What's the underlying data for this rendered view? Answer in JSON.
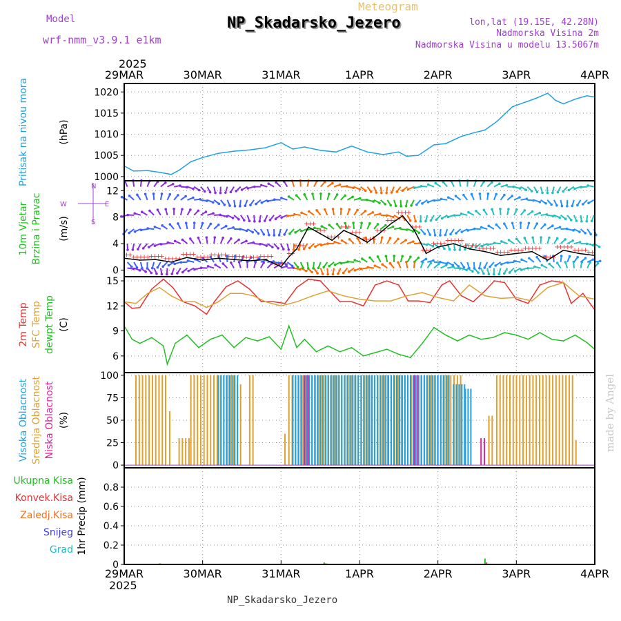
{
  "header": {
    "model_label": "Model",
    "model_name": "wrf-nmm_v3.9.1 e1km",
    "meteogram_label": "Meteogram",
    "station": "NP_Skadarsko_Jezero",
    "lonlat": "lon,lat (19.15E, 42.28N)",
    "elevation": "Nadmorska Visina 2m",
    "model_elevation": "Nadmorska Visina u modelu 13.5067m",
    "watermark": "made by Angel",
    "footer_station": "NP_Skadarsko_Jezero",
    "colors": {
      "purple": "#a040d0",
      "title_shadow": "#9a9a9a",
      "meteogram": "#e8c070"
    }
  },
  "time_axis": {
    "year": "2025",
    "labels": [
      "29MAR",
      "30MAR",
      "31MAR",
      "1APR",
      "2APR",
      "3APR",
      "4APR"
    ],
    "range_days": [
      0,
      6
    ]
  },
  "chart_data": [
    {
      "type": "line",
      "id": "pressure",
      "ylabel_lines": [
        {
          "text": "Pritisak na nivou mora",
          "color": "#20a0e0"
        }
      ],
      "unit": "(hPa)",
      "yticks": [
        "1000",
        "1005",
        "1010",
        "1015",
        "1020"
      ],
      "ylim": [
        999,
        1022
      ],
      "grid": true,
      "series": [
        {
          "color": "#20a0e0",
          "x": [
            0,
            0.12,
            0.3,
            0.45,
            0.6,
            0.7,
            0.85,
            1.0,
            1.2,
            1.4,
            1.6,
            1.8,
            2.0,
            2.15,
            2.3,
            2.5,
            2.7,
            2.9,
            3.1,
            3.3,
            3.5,
            3.6,
            3.75,
            3.95,
            4.1,
            4.3,
            4.45,
            4.6,
            4.75,
            4.95,
            5.1,
            5.25,
            5.4,
            5.5,
            5.6,
            5.75,
            5.9,
            6.0
          ],
          "y": [
            1002.5,
            1001.3,
            1001.4,
            1001.0,
            1000.5,
            1001.5,
            1003.5,
            1004.5,
            1005.5,
            1006.0,
            1006.3,
            1006.8,
            1008.0,
            1006.5,
            1007.0,
            1006.2,
            1005.8,
            1007.2,
            1005.8,
            1005.2,
            1005.8,
            1004.8,
            1005.0,
            1007.5,
            1007.8,
            1009.5,
            1010.3,
            1011.0,
            1013.0,
            1016.5,
            1017.5,
            1018.5,
            1019.7,
            1018.0,
            1017.2,
            1018.3,
            1019.1,
            1018.8
          ]
        }
      ]
    },
    {
      "type": "line",
      "id": "wind",
      "ylabel_lines": [
        {
          "text": "10m Vjetar",
          "color": "#20c020"
        },
        {
          "text": "Brzina i Pravac",
          "color": "#20c020"
        }
      ],
      "unit": "(m/s)",
      "compass": "N S E W",
      "yticks": [
        "0",
        "4",
        "8",
        "12"
      ],
      "ylim": [
        -1,
        13.5
      ],
      "grid": true,
      "series": [
        {
          "color": "#000000",
          "x": [
            0,
            0.2,
            0.4,
            0.6,
            0.8,
            1.0,
            1.2,
            1.4,
            1.6,
            1.8,
            2.0,
            2.1,
            2.2,
            2.35,
            2.5,
            2.65,
            2.8,
            2.95,
            3.1,
            3.25,
            3.4,
            3.55,
            3.7,
            3.85,
            4.0,
            4.2,
            4.4,
            4.6,
            4.8,
            5.0,
            5.2,
            5.4,
            5.6,
            5.8,
            6.0
          ],
          "y": [
            1.8,
            1.5,
            1.6,
            1.2,
            1.9,
            1.5,
            1.8,
            1.6,
            1.4,
            1.6,
            0.5,
            2.0,
            3.2,
            6.5,
            5.5,
            4.5,
            6.0,
            5.2,
            4.2,
            5.5,
            7.0,
            8.2,
            6.0,
            2.5,
            3.5,
            4.0,
            3.2,
            2.8,
            2.2,
            2.5,
            2.8,
            1.5,
            3.0,
            2.5,
            2.2
          ]
        }
      ],
      "arrow_rows": [
        0.3,
        1.2,
        4.0,
        6.2,
        8.3,
        10.6,
        12.6
      ]
    },
    {
      "type": "line",
      "id": "temperature",
      "ylabel_lines": [
        {
          "text": "2m Temp",
          "color": "#e83030"
        },
        {
          "text": "SFC Temp",
          "color": "#e0a030"
        },
        {
          "text": "dewpt Temp",
          "color": "#20c020"
        }
      ],
      "unit": "(C)",
      "yticks": [
        "6",
        "9",
        "12",
        "15"
      ],
      "ylim": [
        4,
        15.5
      ],
      "grid": true,
      "series": [
        {
          "color": "#e83030",
          "x": [
            0,
            0.1,
            0.2,
            0.35,
            0.5,
            0.62,
            0.75,
            0.9,
            1.05,
            1.15,
            1.3,
            1.45,
            1.6,
            1.75,
            1.9,
            2.05,
            2.2,
            2.35,
            2.5,
            2.6,
            2.75,
            2.9,
            3.05,
            3.2,
            3.35,
            3.5,
            3.62,
            3.75,
            3.9,
            4.05,
            4.15,
            4.3,
            4.45,
            4.6,
            4.72,
            4.85,
            5.0,
            5.15,
            5.3,
            5.45,
            5.6,
            5.7,
            5.85,
            6.0
          ],
          "y": [
            12.5,
            11.7,
            11.8,
            14.0,
            15.2,
            14.2,
            12.5,
            12.0,
            11.0,
            12.5,
            14.3,
            15.0,
            14.0,
            12.5,
            12.5,
            12.3,
            14.2,
            15.2,
            15.0,
            14.0,
            12.5,
            12.5,
            12.0,
            14.5,
            15.0,
            14.5,
            12.6,
            12.6,
            12.4,
            14.5,
            15.0,
            13.2,
            12.5,
            13.8,
            15.0,
            14.8,
            12.8,
            12.3,
            14.5,
            15.0,
            14.8,
            12.3,
            13.5,
            11.5
          ]
        },
        {
          "color": "#e0a030",
          "x": [
            0,
            0.15,
            0.3,
            0.45,
            0.6,
            0.75,
            0.9,
            1.05,
            1.2,
            1.35,
            1.5,
            1.65,
            1.8,
            2.0,
            2.2,
            2.4,
            2.6,
            2.8,
            3.0,
            3.2,
            3.4,
            3.6,
            3.8,
            4.0,
            4.2,
            4.4,
            4.6,
            4.8,
            5.0,
            5.2,
            5.4,
            5.6,
            5.8,
            6.0
          ],
          "y": [
            12.5,
            12.3,
            13.5,
            14.2,
            13.2,
            12.5,
            12.5,
            11.8,
            12.5,
            13.5,
            13.5,
            13.2,
            12.5,
            12.0,
            12.5,
            13.2,
            13.8,
            13.2,
            12.8,
            12.6,
            12.6,
            13.2,
            13.6,
            13.0,
            12.6,
            14.5,
            13.2,
            12.9,
            13.0,
            12.6,
            14.2,
            14.8,
            13.2,
            12.8
          ]
        },
        {
          "color": "#20c020",
          "x": [
            0,
            0.1,
            0.2,
            0.35,
            0.5,
            0.55,
            0.65,
            0.8,
            0.95,
            1.1,
            1.25,
            1.4,
            1.55,
            1.7,
            1.85,
            2.0,
            2.1,
            2.2,
            2.3,
            2.45,
            2.6,
            2.75,
            2.9,
            3.05,
            3.2,
            3.35,
            3.5,
            3.65,
            3.8,
            3.95,
            4.1,
            4.25,
            4.4,
            4.55,
            4.7,
            4.85,
            5.0,
            5.15,
            5.3,
            5.45,
            5.6,
            5.75,
            5.9,
            6.0
          ],
          "y": [
            9.6,
            8.0,
            7.5,
            8.2,
            7.2,
            5.0,
            7.5,
            8.5,
            7.0,
            8.0,
            8.5,
            7.0,
            8.2,
            7.8,
            8.3,
            6.8,
            9.6,
            7.0,
            8.0,
            6.5,
            7.2,
            6.5,
            7.0,
            6.0,
            6.4,
            6.8,
            6.2,
            5.8,
            7.5,
            9.4,
            8.5,
            7.8,
            8.5,
            8.0,
            8.2,
            8.8,
            8.5,
            8.0,
            8.8,
            8.0,
            7.8,
            8.5,
            7.6,
            6.8
          ]
        }
      ]
    },
    {
      "type": "bar",
      "id": "clouds",
      "ylabel_lines": [
        {
          "text": "Visoka Oblacnost",
          "color": "#20a0e0"
        },
        {
          "text": "Srednja Oblacnost",
          "color": "#e0a030"
        },
        {
          "text": "Niska Oblacnost",
          "color": "#e020a0"
        }
      ],
      "unit": "(%)",
      "yticks": [
        "0",
        "25",
        "50",
        "75",
        "100"
      ],
      "ylim": [
        -3,
        103
      ],
      "grid": true,
      "series": [
        {
          "name": "Srednja Oblacnost",
          "color": "#e0a030",
          "ranges": [
            [
              0.15,
              0.55,
              100
            ],
            [
              0.58,
              0.6,
              60
            ],
            [
              0.7,
              0.85,
              30
            ],
            [
              0.85,
              1.4,
              100
            ],
            [
              1.4,
              1.5,
              90
            ],
            [
              1.6,
              1.65,
              100
            ],
            [
              2.05,
              2.08,
              35
            ],
            [
              2.1,
              3.45,
              100
            ],
            [
              3.45,
              4.3,
              100
            ],
            [
              4.65,
              4.7,
              55
            ],
            [
              4.75,
              5.75,
              100
            ],
            [
              5.76,
              5.78,
              28
            ]
          ]
        },
        {
          "name": "Visoka Oblacnost",
          "color": "#20a0e0",
          "ranges": [
            [
              1.2,
              1.45,
              100
            ],
            [
              2.15,
              2.6,
              100
            ],
            [
              2.6,
              4.15,
              100
            ],
            [
              4.2,
              4.35,
              90
            ],
            [
              4.35,
              4.45,
              85
            ]
          ]
        },
        {
          "name": "Niska Oblacnost",
          "color": "#e020a0",
          "ranges": [
            [
              2.3,
              2.35,
              100
            ],
            [
              3.7,
              3.75,
              100
            ],
            [
              4.55,
              4.6,
              30
            ]
          ]
        }
      ]
    },
    {
      "type": "bar",
      "id": "precip",
      "legend": [
        {
          "text": "Ukupna Kisa",
          "color": "#20c020"
        },
        {
          "text": "Konvek.Kisa",
          "color": "#e83030"
        },
        {
          "text": "Zaledj.Kisa",
          "color": "#f07020"
        },
        {
          "text": "Snijeg",
          "color": "#4040e0"
        },
        {
          "text": "Grad",
          "color": "#20c0c0"
        }
      ],
      "ylabel": "1hr Precip (mm)",
      "yticks": [
        "0",
        "0.2",
        "0.4",
        "0.6",
        "0.8"
      ],
      "ylim": [
        0,
        1.0
      ],
      "grid": true,
      "series": [
        {
          "name": "Ukupna Kisa",
          "color": "#20c020",
          "x": [
            0.45,
            2.55,
            2.58,
            4.6
          ],
          "values": [
            0.01,
            0.02,
            0.01,
            0.06
          ]
        },
        {
          "name": "Konvek.Kisa",
          "color": "#e83030",
          "x": [
            0.46,
            2.56,
            4.62
          ],
          "values": [
            0.01,
            0.01,
            0.02
          ]
        }
      ]
    }
  ]
}
